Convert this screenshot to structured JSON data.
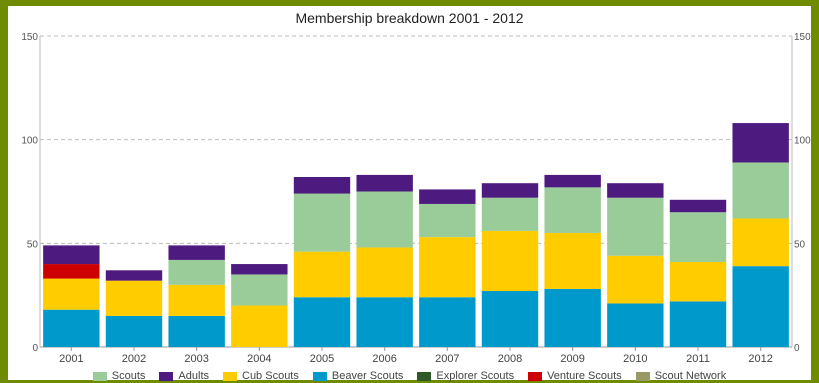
{
  "chart_data": {
    "type": "bar",
    "stacked": true,
    "title": "Membership breakdown 2001 - 2012",
    "xlabel": "",
    "ylabel": "",
    "ylim": [
      0,
      150
    ],
    "yticks": [
      0,
      50,
      100,
      150
    ],
    "grid": true,
    "legend_position": "bottom",
    "categories": [
      "2001",
      "2002",
      "2003",
      "2004",
      "2005",
      "2006",
      "2007",
      "2008",
      "2009",
      "2010",
      "2011",
      "2012"
    ],
    "series": [
      {
        "name": "Beaver Scouts",
        "color": "#0099cc",
        "values": [
          18,
          15,
          15,
          0,
          24,
          24,
          24,
          27,
          28,
          21,
          22,
          39
        ]
      },
      {
        "name": "Cub Scouts",
        "color": "#ffcc00",
        "values": [
          15,
          17,
          15,
          20,
          22,
          24,
          29,
          29,
          27,
          23,
          19,
          23
        ]
      },
      {
        "name": "Venture Scouts",
        "color": "#cc0000",
        "values": [
          7,
          0,
          0,
          0,
          0,
          0,
          0,
          0,
          0,
          0,
          0,
          0
        ]
      },
      {
        "name": "Scouts",
        "color": "#99cc99",
        "values": [
          0,
          0,
          12,
          15,
          28,
          27,
          16,
          16,
          22,
          28,
          24,
          27
        ]
      },
      {
        "name": "Adults",
        "color": "#4d1a7f",
        "values": [
          9,
          5,
          7,
          5,
          8,
          8,
          7,
          7,
          6,
          7,
          6,
          19
        ]
      },
      {
        "name": "Explorer Scouts",
        "color": "#2d5a27",
        "values": [
          0,
          0,
          0,
          0,
          0,
          0,
          0,
          0,
          0,
          0,
          0,
          0
        ]
      },
      {
        "name": "Scout Network",
        "color": "#999966",
        "values": [
          0,
          0,
          0,
          0,
          0,
          0,
          0,
          0,
          0,
          0,
          0,
          0
        ]
      }
    ],
    "legend_order": [
      "Scouts",
      "Adults",
      "Cub Scouts",
      "Beaver Scouts",
      "Explorer Scouts",
      "Venture Scouts",
      "Scout Network"
    ]
  }
}
